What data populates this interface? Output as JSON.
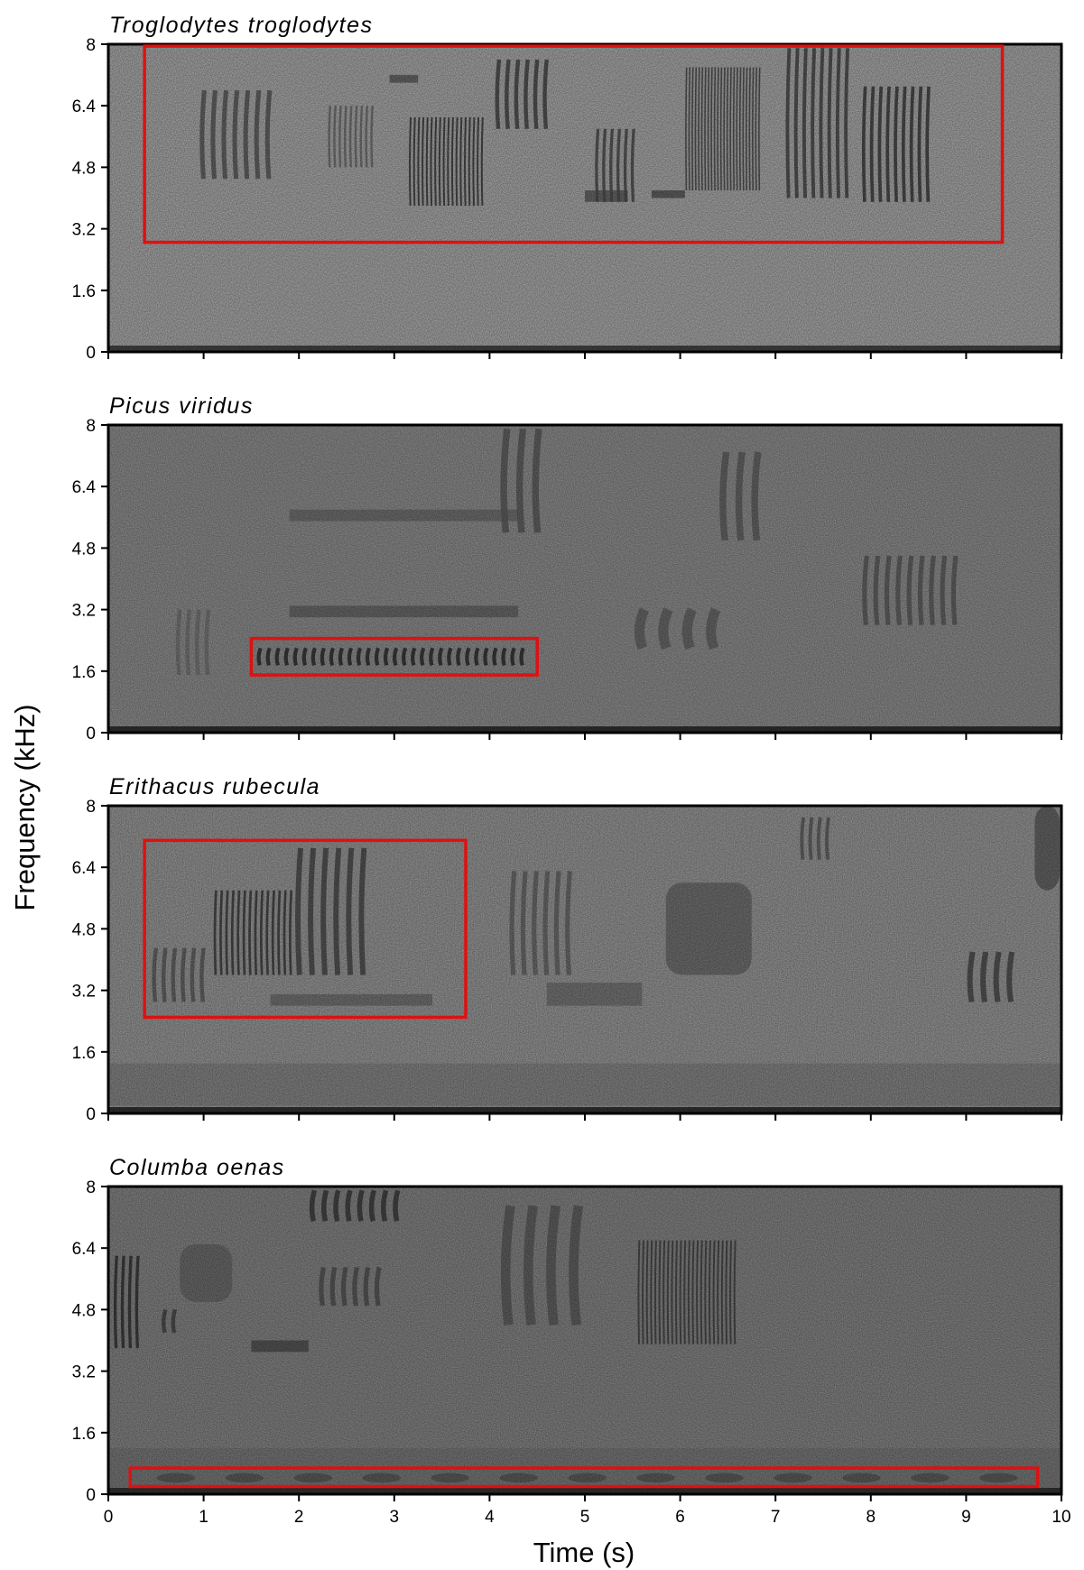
{
  "chart_data": {
    "type": "spectrogram",
    "xlabel": "Time (s)",
    "ylabel": "Frequency (kHz)",
    "xlim": [
      0,
      10
    ],
    "ylim": [
      0,
      8
    ],
    "x_ticks": [
      "0",
      "1",
      "2",
      "3",
      "4",
      "5",
      "6",
      "7",
      "8",
      "9",
      "10"
    ],
    "y_ticks": [
      "0",
      "1.6",
      "3.2",
      "4.8",
      "6.4",
      "8"
    ],
    "colors": {
      "highlight_box": "#e01010",
      "frame": "#000000"
    },
    "panels": [
      {
        "title": "Troglodytes troglodytes",
        "background_gray": 178,
        "highlight": {
          "t_start": 0.38,
          "t_end": 9.38,
          "f_low": 2.85,
          "f_high": 7.95
        },
        "components": [
          {
            "kind": "stack",
            "t0": 0.95,
            "t1": 1.75,
            "f0": 4.5,
            "f1": 6.8,
            "n": 7,
            "tone": 90
          },
          {
            "kind": "stack",
            "t0": 2.3,
            "t1": 2.8,
            "f0": 4.8,
            "f1": 6.4,
            "n": 9,
            "tone": 110
          },
          {
            "kind": "stack",
            "t0": 3.15,
            "t1": 3.95,
            "f0": 3.8,
            "f1": 6.1,
            "n": 18,
            "tone": 55
          },
          {
            "kind": "stack",
            "t0": 4.05,
            "t1": 4.65,
            "f0": 5.8,
            "f1": 7.6,
            "n": 6,
            "tone": 70
          },
          {
            "kind": "stack",
            "t0": 5.1,
            "t1": 5.55,
            "f0": 3.9,
            "f1": 5.8,
            "n": 6,
            "tone": 75
          },
          {
            "kind": "stack",
            "t0": 6.05,
            "t1": 6.85,
            "f0": 4.2,
            "f1": 7.4,
            "n": 24,
            "tone": 70
          },
          {
            "kind": "stack",
            "t0": 7.1,
            "t1": 7.8,
            "f0": 4.0,
            "f1": 7.9,
            "n": 8,
            "tone": 70
          },
          {
            "kind": "stack",
            "t0": 7.9,
            "t1": 8.65,
            "f0": 3.9,
            "f1": 6.9,
            "n": 9,
            "tone": 60
          },
          {
            "kind": "streak",
            "t0": 2.95,
            "t1": 3.25,
            "f0": 7.0,
            "f1": 7.2,
            "tone": 80
          },
          {
            "kind": "streak",
            "t0": 5.0,
            "t1": 5.45,
            "f0": 3.9,
            "f1": 4.2,
            "tone": 80
          },
          {
            "kind": "streak",
            "t0": 5.7,
            "t1": 6.05,
            "f0": 4.0,
            "f1": 4.2,
            "tone": 70
          },
          {
            "kind": "floor",
            "tone": 60
          }
        ]
      },
      {
        "title": "Picus viridus",
        "background_gray": 150,
        "highlight": {
          "t_start": 1.5,
          "t_end": 4.5,
          "f_low": 1.5,
          "f_high": 2.45
        },
        "components": [
          {
            "kind": "stack",
            "t0": 1.55,
            "t1": 4.4,
            "f0": 1.75,
            "f1": 2.2,
            "n": 30,
            "tone": 45
          },
          {
            "kind": "streak",
            "t0": 1.9,
            "t1": 4.3,
            "f0": 3.0,
            "f1": 3.3,
            "tone": 95
          },
          {
            "kind": "streak",
            "t0": 1.9,
            "t1": 4.3,
            "f0": 5.5,
            "f1": 5.8,
            "tone": 105
          },
          {
            "kind": "stack",
            "t0": 4.1,
            "t1": 4.6,
            "f0": 5.2,
            "f1": 7.9,
            "n": 3,
            "tone": 95
          },
          {
            "kind": "stack",
            "t0": 5.5,
            "t1": 6.5,
            "f0": 2.2,
            "f1": 3.2,
            "n": 4,
            "tone": 105
          },
          {
            "kind": "stack",
            "t0": 6.4,
            "t1": 6.9,
            "f0": 5.0,
            "f1": 7.3,
            "n": 3,
            "tone": 100
          },
          {
            "kind": "stack",
            "t0": 7.9,
            "t1": 8.95,
            "f0": 2.8,
            "f1": 4.6,
            "n": 9,
            "tone": 95
          },
          {
            "kind": "stack",
            "t0": 0.7,
            "t1": 1.1,
            "f0": 1.5,
            "f1": 3.2,
            "n": 4,
            "tone": 120
          },
          {
            "kind": "floor",
            "tone": 40
          }
        ]
      },
      {
        "title": "Erithacus rubecula",
        "background_gray": 160,
        "highlight": {
          "t_start": 0.38,
          "t_end": 3.75,
          "f_low": 2.5,
          "f_high": 7.1
        },
        "components": [
          {
            "kind": "stack",
            "t0": 1.1,
            "t1": 1.95,
            "f0": 3.6,
            "f1": 5.8,
            "n": 14,
            "tone": 60
          },
          {
            "kind": "stack",
            "t0": 1.95,
            "t1": 2.75,
            "f0": 3.6,
            "f1": 6.9,
            "n": 6,
            "tone": 75
          },
          {
            "kind": "stack",
            "t0": 0.45,
            "t1": 1.05,
            "f0": 2.9,
            "f1": 4.3,
            "n": 6,
            "tone": 95
          },
          {
            "kind": "streak",
            "t0": 1.7,
            "t1": 3.4,
            "f0": 2.8,
            "f1": 3.1,
            "tone": 105
          },
          {
            "kind": "block",
            "t0": 5.85,
            "t1": 6.75,
            "f0": 3.6,
            "f1": 6.0,
            "tone": 105
          },
          {
            "kind": "stack",
            "t0": 4.2,
            "t1": 4.9,
            "f0": 3.6,
            "f1": 6.3,
            "n": 6,
            "tone": 105
          },
          {
            "kind": "stack",
            "t0": 7.25,
            "t1": 7.6,
            "f0": 6.6,
            "f1": 7.7,
            "n": 4,
            "tone": 95
          },
          {
            "kind": "stack",
            "t0": 9.0,
            "t1": 9.55,
            "f0": 2.9,
            "f1": 4.2,
            "n": 4,
            "tone": 75
          },
          {
            "kind": "block",
            "t0": 9.72,
            "t1": 9.98,
            "f0": 5.8,
            "f1": 8.0,
            "tone": 90
          },
          {
            "kind": "streak",
            "t0": 4.6,
            "t1": 5.6,
            "f0": 2.8,
            "f1": 3.4,
            "tone": 110
          },
          {
            "kind": "band",
            "f0": 0.2,
            "f1": 1.3,
            "tone": 125
          },
          {
            "kind": "floor",
            "tone": 40
          }
        ]
      },
      {
        "title": "Columba oenas",
        "background_gray": 140,
        "highlight": {
          "t_start": 0.23,
          "t_end": 9.75,
          "f_low": 0.2,
          "f_high": 0.68
        },
        "components": [
          {
            "kind": "stack",
            "t0": 0.05,
            "t1": 0.35,
            "f0": 3.8,
            "f1": 6.2,
            "n": 4,
            "tone": 50
          },
          {
            "kind": "block",
            "t0": 0.75,
            "t1": 1.3,
            "f0": 5.0,
            "f1": 6.5,
            "tone": 105
          },
          {
            "kind": "stack",
            "t0": 2.1,
            "t1": 3.1,
            "f0": 7.1,
            "f1": 7.9,
            "n": 8,
            "tone": 60
          },
          {
            "kind": "streak",
            "t0": 1.5,
            "t1": 2.1,
            "f0": 3.7,
            "f1": 4.0,
            "tone": 70
          },
          {
            "kind": "stack",
            "t0": 0.55,
            "t1": 0.75,
            "f0": 4.2,
            "f1": 4.8,
            "n": 2,
            "tone": 70
          },
          {
            "kind": "stack",
            "t0": 2.2,
            "t1": 2.9,
            "f0": 4.9,
            "f1": 5.9,
            "n": 6,
            "tone": 85
          },
          {
            "kind": "stack",
            "t0": 5.55,
            "t1": 6.6,
            "f0": 3.9,
            "f1": 6.6,
            "n": 24,
            "tone": 65
          },
          {
            "kind": "stack",
            "t0": 4.1,
            "t1": 5.05,
            "f0": 4.4,
            "f1": 7.5,
            "n": 4,
            "tone": 95
          },
          {
            "kind": "pulses",
            "t0": 0.35,
            "t1": 9.7,
            "f0": 0.3,
            "f1": 0.55,
            "n": 13,
            "tone": 60
          },
          {
            "kind": "band",
            "f0": 0.0,
            "f1": 1.2,
            "tone": 118
          },
          {
            "kind": "floor",
            "tone": 45
          }
        ]
      }
    ]
  }
}
